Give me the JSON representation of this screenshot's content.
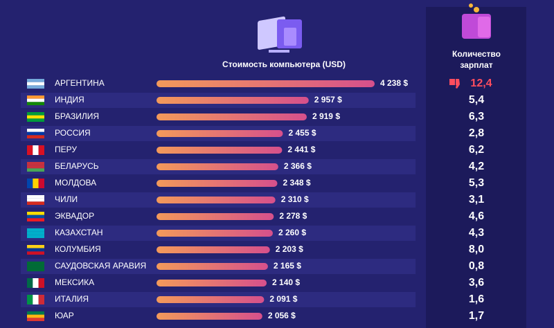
{
  "chart_data": {
    "type": "bar",
    "title": "Стоимость компьютера (USD)",
    "categories": [
      "АРГЕНТИНА",
      "ИНДИЯ",
      "БРАЗИЛИЯ",
      "РОССИЯ",
      "ПЕРУ",
      "БЕЛАРУСЬ",
      "МОЛДОВА",
      "ЧИЛИ",
      "ЭКВАДОР",
      "КАЗАХСТАН",
      "КОЛУМБИЯ",
      "САУДОВСКАЯ АРАВИЯ",
      "МЕКСИКА",
      "ИТАЛИЯ",
      "ЮАР"
    ],
    "values": [
      4238,
      2957,
      2919,
      2455,
      2441,
      2366,
      2348,
      2310,
      2278,
      2260,
      2203,
      2165,
      2140,
      2091,
      2056
    ],
    "value_labels": [
      "4 238 $",
      "2 957 $",
      "2 919 $",
      "2 455 $",
      "2 441 $",
      "2 366 $",
      "2 348 $",
      "2 310 $",
      "2 278 $",
      "2 260 $",
      "2 203 $",
      "2 165 $",
      "2 140 $",
      "2 091 $",
      "2 056 $"
    ],
    "color": "#f39a5a",
    "color_end": "#d6508c",
    "salary_column": {
      "title": "Количество зарплат",
      "values": [
        "12,4",
        "5,4",
        "6,3",
        "2,8",
        "6,2",
        "4,2",
        "5,3",
        "3,1",
        "4,6",
        "4,3",
        "8,0",
        "0,8",
        "3,6",
        "1,6",
        "1,7"
      ],
      "highlight_color": "#ff4d5e"
    }
  }
}
